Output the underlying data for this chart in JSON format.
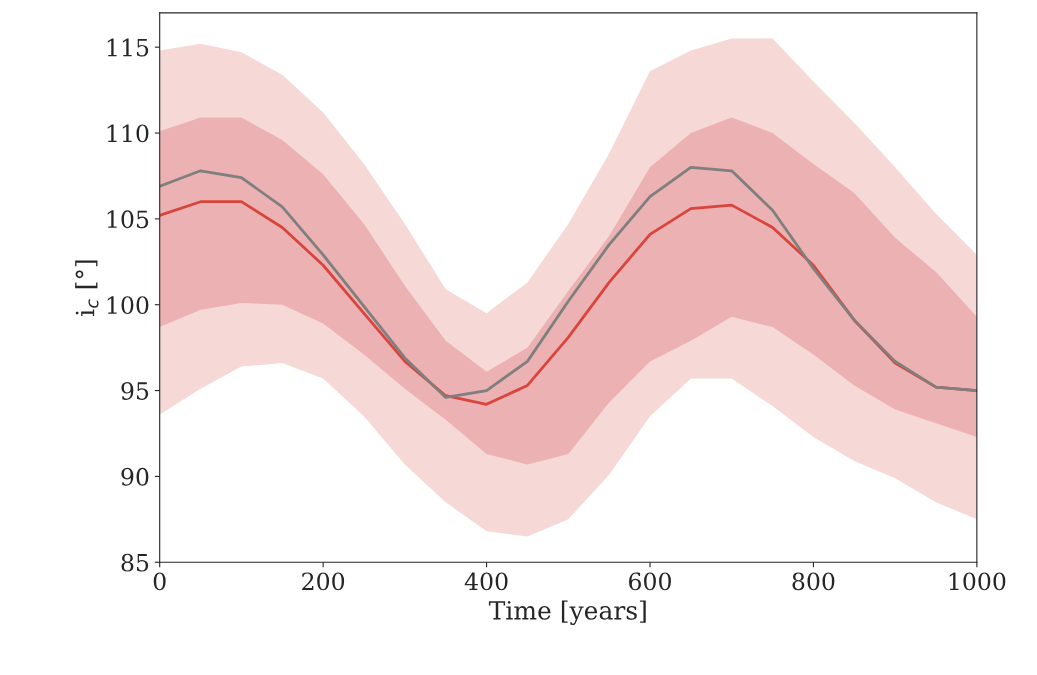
{
  "chart_data": {
    "type": "line",
    "xlabel": "Time [years]",
    "ylabel": "i$_{c}$ [°]",
    "x": [
      0,
      50,
      100,
      150,
      200,
      250,
      300,
      350,
      400,
      450,
      500,
      550,
      600,
      650,
      700,
      750,
      800,
      850,
      900,
      950,
      1000
    ],
    "xlim": [
      0,
      1000
    ],
    "xticks": [
      0,
      200,
      400,
      600,
      800,
      1000
    ],
    "ylim": [
      85,
      117
    ],
    "yticks": [
      85,
      90,
      95,
      100,
      105,
      110,
      115
    ],
    "grid": false,
    "series": [
      {
        "color": "#f6d8d6",
        "values": [
          null,
          null,
          null,
          null,
          null,
          null,
          null,
          null,
          null,
          null,
          null,
          null,
          null,
          null,
          null,
          null,
          null,
          null,
          null,
          null,
          null
        ],
        "lower": [
          93.6,
          95.1,
          96.4,
          96.6,
          95.7,
          93.5,
          90.7,
          88.5,
          86.8,
          86.5,
          87.5,
          90.1,
          93.5,
          95.7,
          95.7,
          94.1,
          92.3,
          90.9,
          89.9,
          88.5,
          87.5
        ],
        "upper": [
          114.8,
          115.2,
          114.7,
          113.4,
          111.2,
          108.2,
          104.7,
          100.9,
          99.5,
          101.3,
          104.7,
          108.8,
          113.6,
          114.8,
          115.5,
          115.5,
          113.0,
          110.6,
          108.0,
          105.3,
          102.9
        ]
      },
      {
        "color": "#ecb1b2",
        "values": [
          null,
          null,
          null,
          null,
          null,
          null,
          null,
          null,
          null,
          null,
          null,
          null,
          null,
          null,
          null,
          null,
          null,
          null,
          null,
          null,
          null
        ],
        "lower": [
          98.7,
          99.7,
          100.1,
          100.0,
          98.9,
          97.1,
          95.1,
          93.3,
          91.3,
          90.7,
          91.3,
          94.3,
          96.7,
          97.9,
          99.3,
          98.7,
          97.1,
          95.3,
          93.9,
          93.1,
          92.3
        ],
        "upper": [
          110.1,
          110.9,
          110.9,
          109.6,
          107.6,
          104.7,
          101.1,
          97.9,
          96.1,
          97.5,
          100.8,
          104.0,
          108.0,
          110.0,
          110.9,
          110.0,
          108.2,
          106.5,
          103.9,
          101.9,
          99.3
        ]
      },
      {
        "color": "#d9453d",
        "values": [
          105.2,
          106.0,
          106.0,
          104.5,
          102.3,
          99.5,
          96.7,
          94.7,
          94.2,
          95.3,
          98.1,
          101.3,
          104.1,
          105.6,
          105.8,
          104.5,
          102.3,
          99.1,
          96.6,
          95.2,
          95.0
        ]
      },
      {
        "color": "#7f7f7f",
        "values": [
          106.9,
          107.8,
          107.4,
          105.7,
          102.9,
          99.9,
          96.9,
          94.6,
          95.0,
          96.7,
          100.2,
          103.5,
          106.3,
          108.0,
          107.8,
          105.5,
          102.1,
          99.1,
          96.7,
          95.2,
          95.0
        ]
      }
    ]
  }
}
